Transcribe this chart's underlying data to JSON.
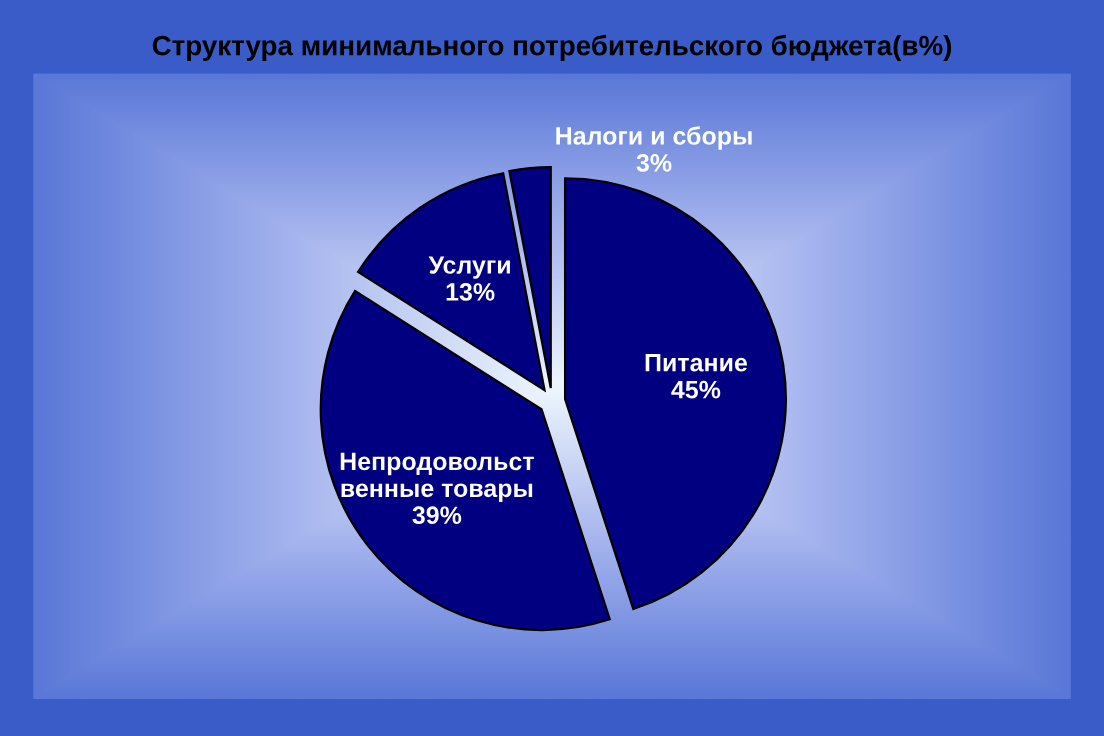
{
  "chart_data": {
    "type": "pie",
    "title": "Структура минимального потребительского бюджета(в%)",
    "categories": [
      "Питание",
      "Непродовольст\nвенные товары",
      "Услуги",
      "Налоги и сборы"
    ],
    "values": [
      45,
      39,
      13,
      3
    ],
    "colors": [
      "#000080",
      "#000080",
      "#000080",
      "#000080"
    ],
    "value_labels": [
      "45%",
      "39%",
      "13%",
      "3%"
    ]
  }
}
